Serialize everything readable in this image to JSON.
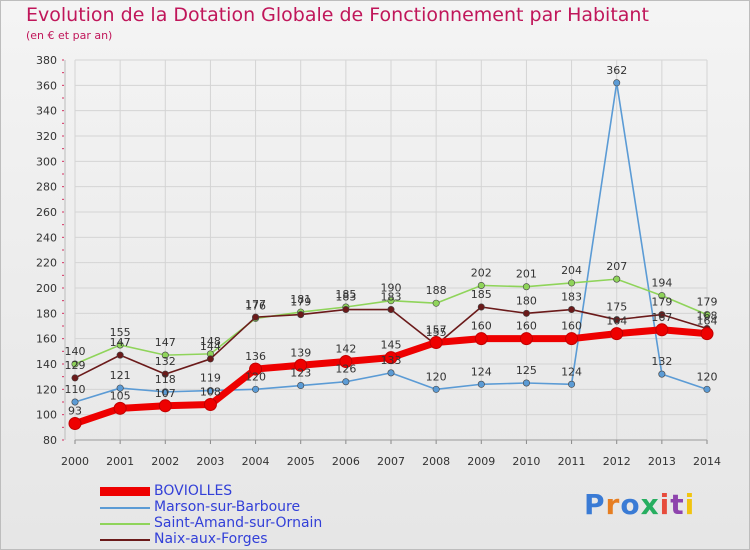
{
  "title": "Evolution de la Dotation Globale de Fonctionnement par Habitant",
  "subtitle": "(en € et par an)",
  "logo": {
    "text": "Proxiti"
  },
  "colors": {
    "title": "#c0165a",
    "axis_text": "#333333",
    "legend_text": "#3340d8",
    "background": "#efefef"
  },
  "chart_data": {
    "type": "line",
    "title": "Evolution de la Dotation Globale de Fonctionnement par Habitant",
    "subtitle": "(en € et par an)",
    "xlabel": "",
    "ylabel": "",
    "x": [
      "2000",
      "2001",
      "2002",
      "2003",
      "2004",
      "2005",
      "2006",
      "2007",
      "2008",
      "2009",
      "2010",
      "2011",
      "2012",
      "2013",
      "2014"
    ],
    "ylim": [
      80,
      380
    ],
    "yticks": [
      80,
      100,
      120,
      140,
      160,
      180,
      200,
      220,
      240,
      260,
      280,
      300,
      320,
      340,
      360,
      380
    ],
    "grid": true,
    "legend_position": "bottom-left",
    "series": [
      {
        "name": "BOVIOLLES",
        "color": "#ee0000",
        "values": [
          93,
          105,
          107,
          108,
          136,
          139,
          142,
          145,
          157,
          160,
          160,
          160,
          164,
          167,
          164
        ],
        "labels": [
          "93",
          "105",
          "107",
          "108",
          "136",
          "139",
          "142",
          "145",
          "157",
          "160",
          "160",
          "160",
          "164",
          "167",
          "164"
        ]
      },
      {
        "name": "Marson-sur-Barboure",
        "color": "#5b9bd5",
        "values": [
          110,
          121,
          118,
          119,
          120,
          123,
          126,
          133,
          120,
          124,
          125,
          124,
          362,
          132,
          120
        ],
        "labels": [
          "110",
          "121",
          "118",
          "119",
          "120",
          "123",
          "126",
          "133",
          "120",
          "124",
          "125",
          "124",
          "362",
          "132",
          "120"
        ]
      },
      {
        "name": "Saint-Amand-sur-Ornain",
        "color": "#8fd45a",
        "values": [
          140,
          155,
          147,
          148,
          176,
          181,
          185,
          190,
          188,
          202,
          201,
          204,
          207,
          194,
          179
        ],
        "labels": [
          "140",
          "155",
          "147",
          "148",
          "176",
          "181",
          "185",
          "190",
          "188",
          "202",
          "201",
          "204",
          "207",
          "194",
          "179"
        ]
      },
      {
        "name": "Naix-aux-Forges",
        "color": "#6b1a1a",
        "values": [
          129,
          147,
          132,
          144,
          177,
          179,
          183,
          183,
          155,
          185,
          180,
          183,
          175,
          179,
          168
        ],
        "labels": [
          "129",
          "147",
          "132",
          "144",
          "177",
          "179",
          "183",
          "183",
          "155",
          "185",
          "180",
          "183",
          "175",
          "179",
          "168"
        ]
      }
    ]
  }
}
